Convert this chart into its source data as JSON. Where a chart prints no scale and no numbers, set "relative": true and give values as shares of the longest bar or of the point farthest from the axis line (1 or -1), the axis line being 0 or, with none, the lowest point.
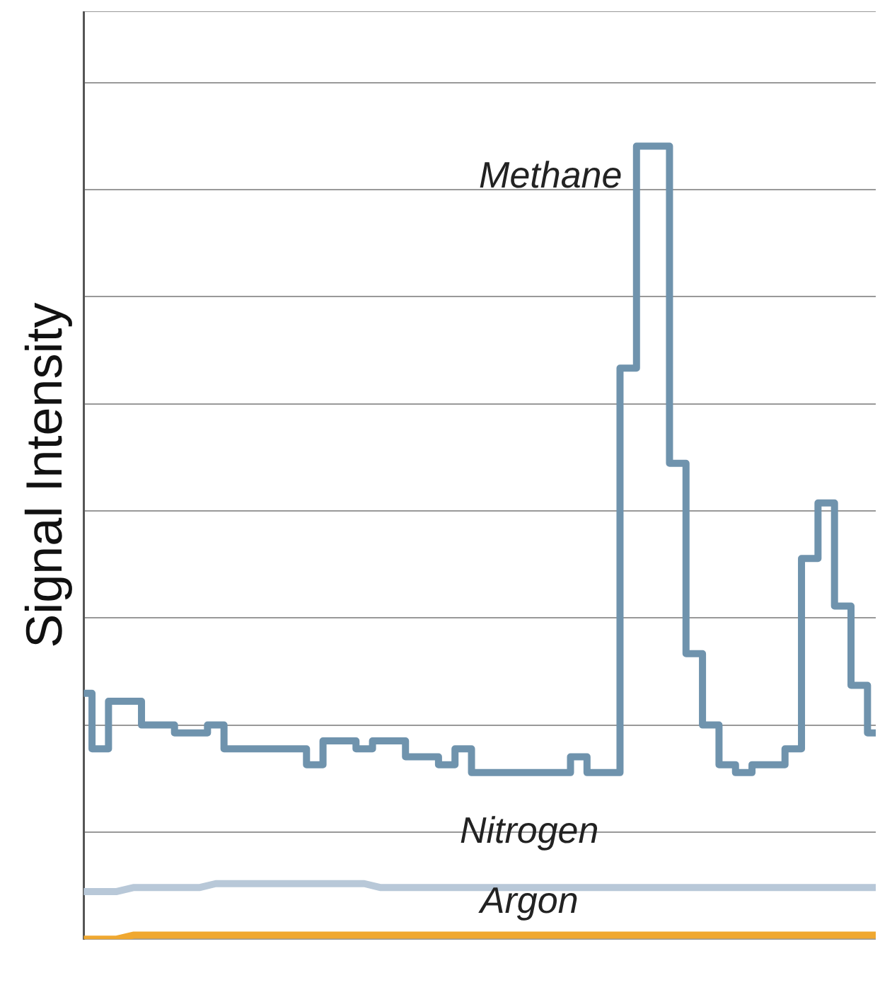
{
  "chart_data": {
    "type": "line",
    "ylabel": "Signal Intensity",
    "relative": true,
    "grid": "y",
    "legend": false,
    "marker": "none",
    "categories": [
      null,
      null,
      null,
      null,
      null,
      null,
      null,
      null,
      null,
      null,
      null,
      null,
      null,
      null,
      null,
      null,
      null,
      null,
      null,
      null,
      null,
      null,
      null,
      null,
      null,
      null,
      null,
      null,
      null,
      null,
      null,
      null,
      null,
      null,
      null,
      null,
      null,
      null,
      null,
      null,
      null,
      null,
      null,
      null,
      null,
      null,
      null,
      null,
      null
    ],
    "series": [
      {
        "name": "Methane",
        "type": "step",
        "color": "#6f93ad",
        "values": [
          0.31,
          0.24,
          0.3,
          0.3,
          0.27,
          0.27,
          0.26,
          0.26,
          0.27,
          0.24,
          0.24,
          0.24,
          0.24,
          0.24,
          0.22,
          0.25,
          0.25,
          0.24,
          0.25,
          0.25,
          0.23,
          0.23,
          0.22,
          0.24,
          0.21,
          0.21,
          0.21,
          0.21,
          0.21,
          0.21,
          0.23,
          0.21,
          0.21,
          0.72,
          1,
          1,
          0.6,
          0.36,
          0.27,
          0.22,
          0.21,
          0.22,
          0.22,
          0.24,
          0.48,
          0.55,
          0.42,
          0.32,
          0.26
        ]
      },
      {
        "name": "Nitrogen",
        "color": "#b8c8d8",
        "values": [
          0.06,
          0.06,
          0.06,
          0.065,
          0.065,
          0.065,
          0.065,
          0.065,
          0.07,
          0.07,
          0.07,
          0.07,
          0.07,
          0.07,
          0.07,
          0.07,
          0.07,
          0.07,
          0.065,
          0.065,
          0.065,
          0.065,
          0.065,
          0.065,
          0.065,
          0.065,
          0.065,
          0.065,
          0.065,
          0.065,
          0.065,
          0.065,
          0.065,
          0.065,
          0.065,
          0.065,
          0.065,
          0.065,
          0.065,
          0.065,
          0.065,
          0.065,
          0.065,
          0.065,
          0.065,
          0.065,
          0.065,
          0.065,
          0.065
        ]
      },
      {
        "name": "Argon",
        "color": "#f0a830",
        "values": [
          0,
          0,
          0,
          0.005,
          0.005,
          0.005,
          0.005,
          0.005,
          0.005,
          0.005,
          0.005,
          0.005,
          0.005,
          0.005,
          0.005,
          0.005,
          0.005,
          0.005,
          0.005,
          0.005,
          0.005,
          0.005,
          0.005,
          0.005,
          0.005,
          0.005,
          0.005,
          0.005,
          0.005,
          0.005,
          0.005,
          0.005,
          0.005,
          0.005,
          0.005,
          0.005,
          0.005,
          0.005,
          0.005,
          0.005,
          0.005,
          0.005,
          0.005,
          0.005,
          0.005,
          0.005,
          0.005,
          0.005,
          0.005
        ]
      }
    ]
  }
}
